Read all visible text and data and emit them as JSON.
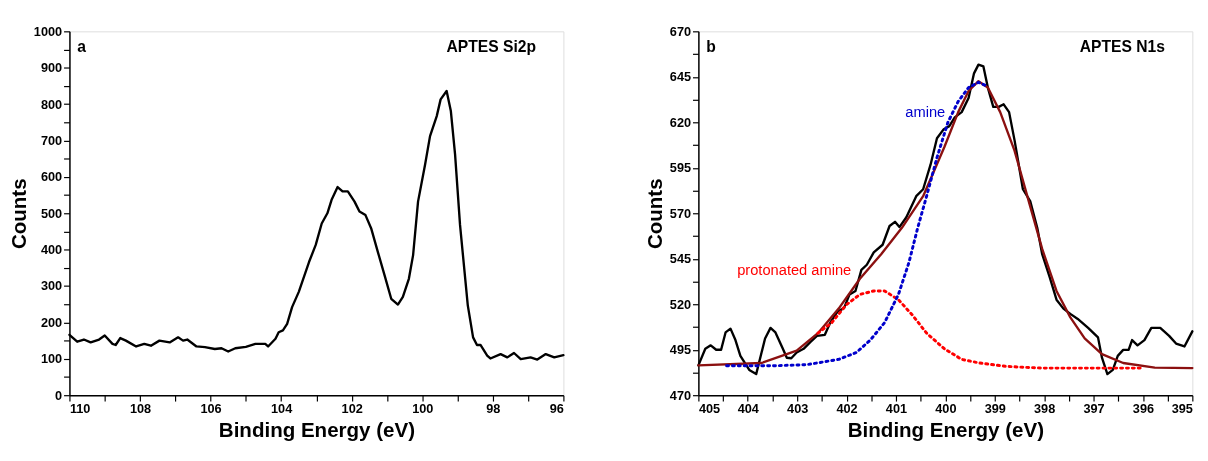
{
  "chart_data": [
    {
      "type": "line",
      "annotations": [
        "a",
        "APTES Si2p"
      ],
      "xlabel": "Binding Energy (eV)",
      "ylabel": "Counts",
      "x": [
        110,
        109.78,
        109.59,
        109.4,
        109.16,
        109.0,
        108.78,
        108.69,
        108.56,
        108.4,
        108.11,
        107.88,
        107.69,
        107.45,
        107.16,
        106.92,
        106.78,
        106.66,
        106.4,
        106.16,
        105.88,
        105.69,
        105.5,
        105.3,
        105.0,
        104.73,
        104.45,
        104.37,
        104.16,
        104.07,
        103.95,
        103.83,
        103.69,
        103.5,
        103.21,
        103.02,
        102.85,
        102.69,
        102.57,
        102.4,
        102.26,
        102.11,
        101.92,
        101.78,
        101.61,
        101.45,
        101.26,
        101.07,
        100.88,
        100.69,
        100.55,
        100.38,
        100.26,
        100.12,
        99.92,
        99.78,
        99.59,
        99.48,
        99.31,
        99.19,
        99.07,
        98.93,
        98.71,
        98.56,
        98.45,
        98.35,
        98.16,
        98.07,
        97.78,
        97.59,
        97.4,
        97.21,
        96.93,
        96.74,
        96.5,
        96.26,
        96.0
      ],
      "series": [
        {
          "color": "#000000",
          "values": [
            166,
            147,
            153,
            145,
            153,
            164,
            141,
            138,
            157,
            150,
            134,
            141,
            136,
            150,
            145,
            159,
            150,
            153,
            134,
            132,
            127,
            129,
            120,
            129,
            133,
            141,
            141,
            134,
            155,
            173,
            178,
            196,
            242,
            284,
            366,
            413,
            472,
            500,
            537,
            572,
            560,
            560,
            532,
            505,
            495,
            459,
            394,
            330,
            265,
            249,
            270,
            320,
            385,
            532,
            634,
            712,
            767,
            813,
            836,
            781,
            661,
            468,
            247,
            159,
            138,
            138,
            109,
            101,
            113,
            104,
            116,
            99,
            104,
            98,
            113,
            104,
            110
          ]
        }
      ],
      "xlim": [
        110,
        96
      ],
      "ylim": [
        0,
        1000
      ],
      "xticks": [
        110,
        {
          "value": 109,
          "label": null
        },
        108,
        {
          "value": 107,
          "label": null
        },
        106,
        {
          "value": 105,
          "label": null
        },
        104,
        {
          "value": 103,
          "label": null
        },
        102,
        {
          "value": 101,
          "label": null
        },
        100,
        {
          "value": 99,
          "label": null
        },
        98,
        {
          "value": 97,
          "label": null
        },
        96
      ],
      "yticks": [
        0,
        {
          "value": 50,
          "label": null
        },
        100,
        {
          "value": 150,
          "label": null
        },
        200,
        {
          "value": 250,
          "label": null
        },
        300,
        {
          "value": 350,
          "label": null
        },
        400,
        {
          "value": 450,
          "label": null
        },
        500,
        {
          "value": 550,
          "label": null
        },
        600,
        {
          "value": 650,
          "label": null
        },
        700,
        {
          "value": 750,
          "label": null
        },
        800,
        {
          "value": 850,
          "label": null
        },
        900,
        {
          "value": 950,
          "label": null
        },
        1000
      ],
      "grid": false,
      "legend": false,
      "line_style": "solid",
      "marker": "none"
    },
    {
      "type": "line",
      "annotations": [
        "b",
        "APTES N1s"
      ],
      "xlabel": "Binding Energy (eV)",
      "ylabel": "Counts",
      "series": [
        {
          "color": "#000000",
          "line_style": "solid",
          "x": [
            405,
            404.86,
            404.75,
            404.64,
            404.54,
            404.45,
            404.35,
            404.25,
            404.15,
            403.97,
            403.83,
            403.65,
            403.54,
            403.44,
            403.29,
            403.21,
            403.12,
            403.01,
            402.87,
            402.73,
            402.6,
            402.44,
            402.33,
            402.19,
            402.05,
            401.94,
            401.82,
            401.7,
            401.59,
            401.45,
            401.27,
            401.13,
            401.02,
            400.93,
            400.79,
            400.59,
            400.45,
            400.3,
            400.17,
            400.04,
            399.92,
            399.81,
            399.67,
            399.53,
            399.42,
            399.33,
            399.23,
            399.14,
            399.03,
            398.92,
            398.82,
            398.71,
            398.6,
            398.43,
            398.28,
            398.14,
            398.04,
            397.89,
            397.75,
            397.61,
            397.47,
            397.32,
            397.11,
            396.91,
            396.83,
            396.72,
            396.61,
            396.51,
            396.4,
            396.29,
            396.22,
            396.11,
            395.97,
            395.83,
            395.65,
            395.47,
            395.33,
            395.16,
            395.0
          ],
          "values": [
            486.4,
            495.5,
            497.4,
            495,
            495,
            504.5,
            506.6,
            500.3,
            491.6,
            483.9,
            481.6,
            501.2,
            507,
            504.5,
            495.5,
            490.6,
            490.3,
            493.5,
            495.5,
            499.3,
            502.6,
            503.2,
            509.9,
            515.7,
            518,
            525.4,
            527.3,
            538.9,
            541.7,
            548.5,
            552.7,
            563,
            565.3,
            562.4,
            567.8,
            579.4,
            583.2,
            596.7,
            611.2,
            616,
            617.9,
            622.7,
            625.6,
            633.4,
            646.9,
            651.7,
            650.7,
            639.1,
            628.5,
            628.5,
            629.9,
            625.6,
            610.2,
            583.2,
            576.5,
            562,
            547.5,
            535,
            522.5,
            517.6,
            514.7,
            511.9,
            507,
            501.8,
            490.6,
            481.6,
            483.9,
            491.6,
            494.9,
            494.9,
            500.3,
            497.4,
            500.3,
            507,
            507,
            502.6,
            498.4,
            496.8,
            505.1
          ]
        },
        {
          "color": "#ff0000",
          "line_style": "dotted",
          "name": "protonated amine",
          "x": [
            402.58,
            402.3,
            402.01,
            401.73,
            401.45,
            401.23,
            400.95,
            400.66,
            400.38,
            400.02,
            399.67,
            399.31,
            398.75,
            398.03,
            397.32,
            396.61,
            396.04
          ],
          "values": [
            504.1,
            509.9,
            519.6,
            525.4,
            527.3,
            527.3,
            522.5,
            513.8,
            504.1,
            495.5,
            489.7,
            487.7,
            485.8,
            484.9,
            484.9,
            484.9,
            484.9
          ]
        },
        {
          "color": "#0000cc",
          "line_style": "dotted",
          "name": "amine",
          "x": [
            404.43,
            403.44,
            402.8,
            402.16,
            401.8,
            401.52,
            401.23,
            400.95,
            400.74,
            400.56,
            400.38,
            400.17,
            399.95,
            399.74,
            399.53,
            399.33,
            399.17
          ],
          "values": [
            486.2,
            486.2,
            486.8,
            489.7,
            493.5,
            500.3,
            509.9,
            525.4,
            542.7,
            562,
            579.4,
            600.6,
            619.9,
            631.5,
            639.1,
            642,
            640
          ]
        },
        {
          "color": "#8b1010",
          "line_style": "solid",
          "x": [
            405,
            403.72,
            403.01,
            402.58,
            402.16,
            401.73,
            401.3,
            400.88,
            400.45,
            400.02,
            399.74,
            399.53,
            399.33,
            399.14,
            398.89,
            398.6,
            398.32,
            398.04,
            397.75,
            397.47,
            397.18,
            396.83,
            396.4,
            395.76,
            395
          ],
          "values": [
            486.4,
            487.7,
            494.5,
            504.1,
            517.6,
            534,
            547.5,
            562,
            579.4,
            606.4,
            625.6,
            637.2,
            642.6,
            639.1,
            625.6,
            604.4,
            577.4,
            550.4,
            527.3,
            512.8,
            501.2,
            492.6,
            487.7,
            485.2,
            484.9
          ]
        }
      ],
      "xlim": [
        405,
        395
      ],
      "ylim": [
        470,
        670
      ],
      "xticks": [
        405,
        {
          "value": 404.5,
          "label": null
        },
        404,
        {
          "value": 403.5,
          "label": null
        },
        403,
        {
          "value": 402.5,
          "label": null
        },
        402,
        {
          "value": 401.5,
          "label": null
        },
        401,
        {
          "value": 400.5,
          "label": null
        },
        400,
        {
          "value": 399.5,
          "label": null
        },
        399,
        {
          "value": 398.5,
          "label": null
        },
        398,
        {
          "value": 397.5,
          "label": null
        },
        397,
        {
          "value": 396.5,
          "label": null
        },
        396,
        {
          "value": 395.5,
          "label": null
        },
        395
      ],
      "yticks": [
        470,
        {
          "value": 482.5,
          "label": null
        },
        495,
        {
          "value": 507.5,
          "label": null
        },
        520,
        {
          "value": 532.5,
          "label": null
        },
        545,
        {
          "value": 557.5,
          "label": null
        },
        570,
        {
          "value": 582.5,
          "label": null
        },
        595,
        {
          "value": 607.5,
          "label": null
        },
        620,
        {
          "value": 632.5,
          "label": null
        },
        645,
        {
          "value": 657.5,
          "label": null
        },
        670
      ],
      "grid": false,
      "legend": false,
      "marker": "none"
    }
  ]
}
